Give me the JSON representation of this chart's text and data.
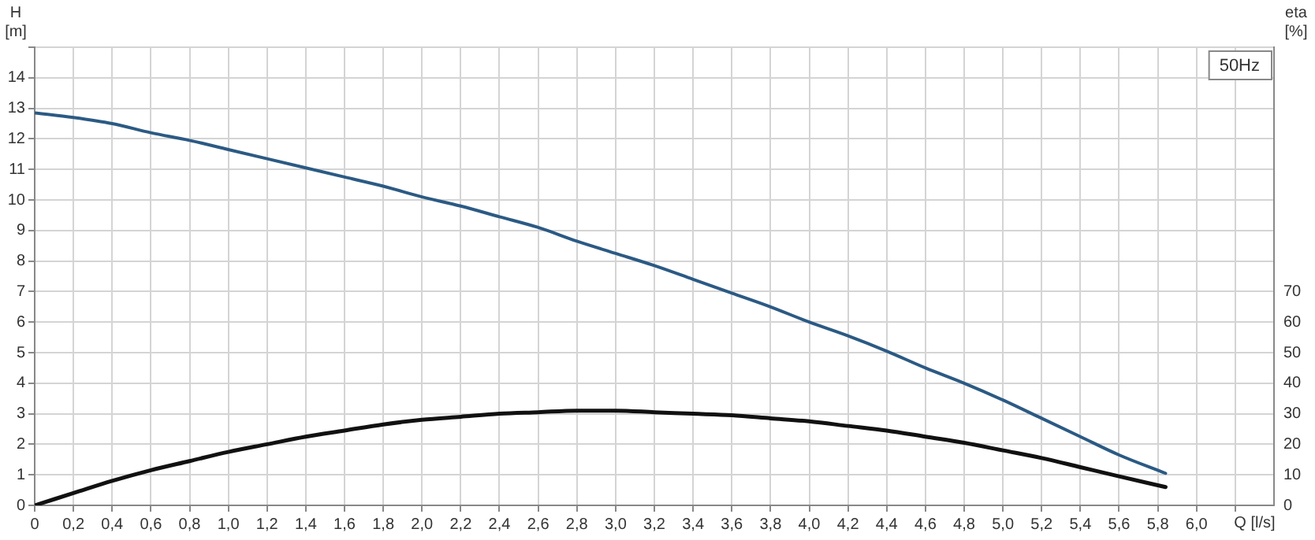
{
  "chart_data": {
    "type": "line",
    "xlabel": "Q [l/s]",
    "ylabel": "H [m]",
    "y2label": "eta [%]",
    "annotations": [
      "50Hz"
    ],
    "x": [
      0,
      0.2,
      0.4,
      0.6,
      0.8,
      1.0,
      1.2,
      1.4,
      1.6,
      1.8,
      2.0,
      2.2,
      2.4,
      2.6,
      2.8,
      3.0,
      3.2,
      3.4,
      3.6,
      3.8,
      4.0,
      4.2,
      4.4,
      4.6,
      4.8,
      5.0,
      5.2,
      5.4,
      5.6,
      5.84
    ],
    "series": [
      {
        "color": "#2b5a84",
        "values": [
          12.85,
          12.7,
          12.5,
          12.2,
          11.95,
          11.65,
          11.35,
          11.05,
          10.75,
          10.45,
          10.1,
          9.8,
          9.45,
          9.1,
          8.65,
          8.25,
          7.85,
          7.4,
          6.95,
          6.5,
          6.0,
          5.55,
          5.05,
          4.5,
          4.0,
          3.45,
          2.85,
          2.25,
          1.65,
          1.05
        ]
      },
      {
        "color": "#111111",
        "axis": "y2",
        "values": [
          0,
          4,
          8,
          11.5,
          14.5,
          17.5,
          20,
          22.5,
          24.5,
          26.5,
          28,
          29,
          30,
          30.5,
          31,
          31,
          30.5,
          30,
          29.5,
          28.5,
          27.5,
          26,
          24.5,
          22.5,
          20.5,
          18,
          15.5,
          12.5,
          9.5,
          6
        ]
      }
    ],
    "xlim": [
      0,
      6.4
    ],
    "xticks": [
      0,
      {
        "value": 0.2,
        "label": "0,2"
      },
      {
        "value": 0.4,
        "label": "0,4"
      },
      {
        "value": 0.6,
        "label": "0,6"
      },
      {
        "value": 0.8,
        "label": "0,8"
      },
      {
        "value": 1.0,
        "label": "1,0"
      },
      {
        "value": 1.2,
        "label": "1,2"
      },
      {
        "value": 1.4,
        "label": "1,4"
      },
      {
        "value": 1.6,
        "label": "1,6"
      },
      {
        "value": 1.8,
        "label": "1,8"
      },
      {
        "value": 2.0,
        "label": "2,0"
      },
      {
        "value": 2.2,
        "label": "2,2"
      },
      {
        "value": 2.4,
        "label": "2,4"
      },
      {
        "value": 2.6,
        "label": "2,6"
      },
      {
        "value": 2.8,
        "label": "2,8"
      },
      {
        "value": 3.0,
        "label": "3,0"
      },
      {
        "value": 3.2,
        "label": "3,2"
      },
      {
        "value": 3.4,
        "label": "3,4"
      },
      {
        "value": 3.6,
        "label": "3,6"
      },
      {
        "value": 3.8,
        "label": "3,8"
      },
      {
        "value": 4.0,
        "label": "4,0"
      },
      {
        "value": 4.2,
        "label": "4,2"
      },
      {
        "value": 4.4,
        "label": "4,4"
      },
      {
        "value": 4.6,
        "label": "4,6"
      },
      {
        "value": 4.8,
        "label": "4,8"
      },
      {
        "value": 5.0,
        "label": "5,0"
      },
      {
        "value": 5.2,
        "label": "5,2"
      },
      {
        "value": 5.4,
        "label": "5,4"
      },
      {
        "value": 5.6,
        "label": "5,6"
      },
      {
        "value": 5.8,
        "label": "5,8"
      },
      {
        "value": 6.0,
        "label": "6,0"
      },
      {
        "value": 6.2,
        "label": null
      }
    ],
    "ylim": [
      0,
      15
    ],
    "yticks": [
      0,
      1,
      2,
      3,
      4,
      5,
      6,
      7,
      8,
      9,
      10,
      11,
      12,
      13,
      14,
      {
        "value": 15,
        "label": null
      }
    ],
    "y2lim": [
      0,
      150
    ],
    "y2ticks": [
      0,
      10,
      20,
      30,
      40,
      50,
      60,
      70
    ],
    "grid": true,
    "legend": false,
    "marker": "none",
    "line_style": "solid"
  }
}
